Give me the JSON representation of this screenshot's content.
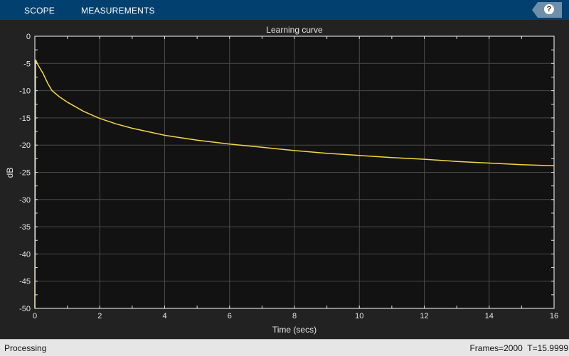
{
  "toolbar": {
    "tabs": [
      {
        "label": "SCOPE"
      },
      {
        "label": "MEASUREMENTS"
      }
    ],
    "help_label": "?",
    "color": "#02406f"
  },
  "status": {
    "left": "Processing",
    "right": "Frames=2000  T=15.9999"
  },
  "chart_data": {
    "type": "line",
    "title": "Learning curve",
    "xlabel": "Time (secs)",
    "ylabel": "dB",
    "xlim": [
      0,
      16
    ],
    "ylim": [
      -50,
      0
    ],
    "xticks": [
      "0",
      "2",
      "4",
      "6",
      "8",
      "10",
      "12",
      "14",
      "16"
    ],
    "yticks": [
      "0",
      "-5",
      "-10",
      "-15",
      "-20",
      "-25",
      "-30",
      "-35",
      "-40",
      "-45",
      "-50"
    ],
    "grid": true,
    "background": "#121212",
    "line_color": "#f5d742",
    "series": [
      {
        "x": [
          0,
          0.02,
          0.1,
          0.25,
          0.4,
          0.53,
          0.75,
          1,
          1.5,
          2,
          2.5,
          3,
          4,
          5,
          6,
          7,
          8,
          9,
          10,
          11,
          12,
          13,
          14,
          15,
          16
        ],
        "y": [
          -50,
          -4.3,
          -5.3,
          -6.8,
          -8.7,
          -10,
          -11.1,
          -12.1,
          -13.8,
          -15.1,
          -16.1,
          -16.9,
          -18.2,
          -19.1,
          -19.8,
          -20.4,
          -21.0,
          -21.5,
          -21.9,
          -22.3,
          -22.6,
          -23.0,
          -23.3,
          -23.6,
          -23.8
        ]
      }
    ]
  }
}
